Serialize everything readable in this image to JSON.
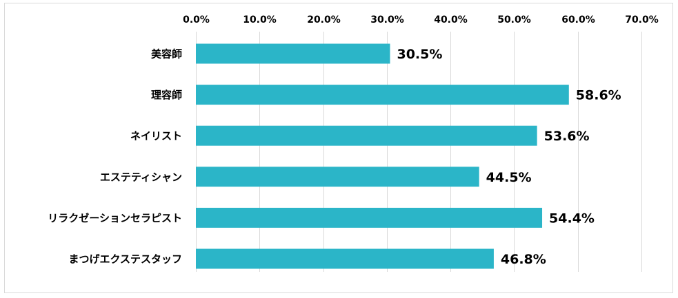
{
  "chart_data": {
    "type": "bar",
    "orientation": "horizontal",
    "categories": [
      "美容師",
      "理容師",
      "ネイリスト",
      "エステティシャン",
      "リラクゼーションセラピスト",
      "まつげエクステスタッフ"
    ],
    "values": [
      30.5,
      58.6,
      53.6,
      44.5,
      54.4,
      46.8
    ],
    "data_labels": [
      "30.5%",
      "58.6%",
      "53.6%",
      "44.5%",
      "54.4%",
      "46.8%"
    ],
    "xlim": [
      0,
      70
    ],
    "x_ticks": [
      0,
      10,
      20,
      30,
      40,
      50,
      60,
      70
    ],
    "x_tick_labels": [
      "0.0%",
      "10.0%",
      "20.0%",
      "30.0%",
      "40.0%",
      "50.0%",
      "60.0%",
      "70.0%"
    ],
    "x_axis_position": "top",
    "grid": true,
    "bar_color": "#2bb5c8",
    "title": "",
    "xlabel": "",
    "ylabel": ""
  }
}
